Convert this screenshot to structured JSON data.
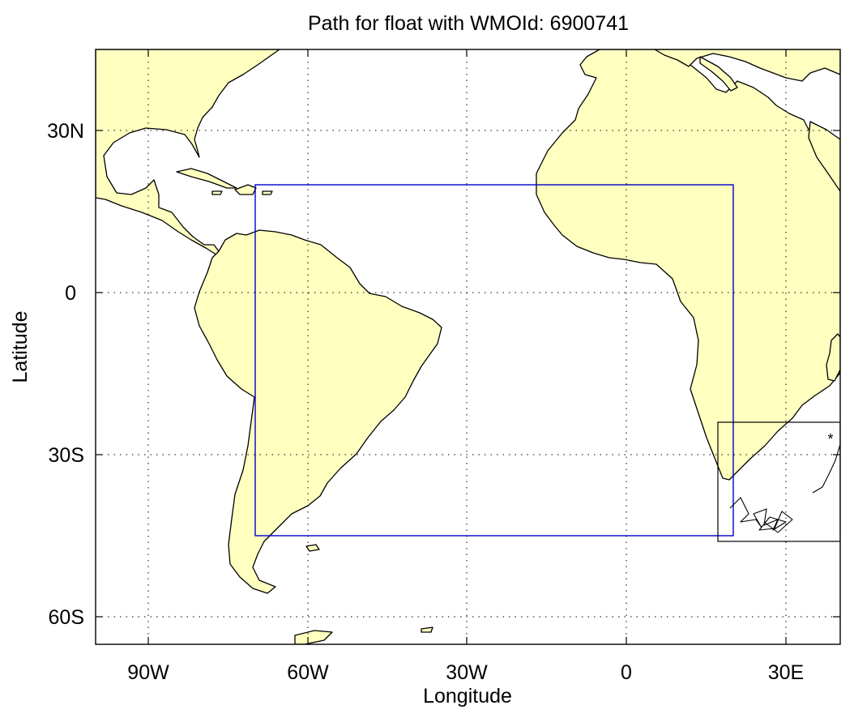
{
  "title": "Path for float with WMOId: 6900741",
  "x_axis": {
    "label": "Longitude",
    "range_deg": [
      -100,
      39
    ],
    "ticks": [
      {
        "value": -90,
        "label": "90W"
      },
      {
        "value": -60,
        "label": "60W"
      },
      {
        "value": -30,
        "label": "30W"
      },
      {
        "value": 0,
        "label": "0"
      },
      {
        "value": 30,
        "label": "30E"
      }
    ]
  },
  "y_axis": {
    "label": "Latitude",
    "range_deg": [
      -65,
      45
    ],
    "ticks": [
      {
        "value": 30,
        "label": "30N"
      },
      {
        "value": 0,
        "label": "0"
      },
      {
        "value": -30,
        "label": "30S"
      },
      {
        "value": -60,
        "label": "60S"
      }
    ]
  },
  "grid": true,
  "colors": {
    "land": "#ffffc0",
    "region_box": "#0000cc",
    "path": "#000000"
  },
  "region_box_deg": {
    "west": -70,
    "east": 20,
    "south": -45,
    "north": 20
  },
  "inset_box_deg": {
    "west": 17,
    "east": 40,
    "south": -46,
    "north": -24
  },
  "float_path_deg": [
    [
      17.5,
      -40
    ],
    [
      19.5,
      -38
    ],
    [
      21,
      -41
    ],
    [
      19.5,
      -42.5
    ],
    [
      22.5,
      -42
    ],
    [
      23.5,
      -43.5
    ],
    [
      22,
      -41
    ],
    [
      24.5,
      -40
    ],
    [
      24,
      -43
    ],
    [
      26.5,
      -42
    ],
    [
      25.5,
      -44
    ],
    [
      28,
      -42.5
    ],
    [
      25,
      -41.5
    ],
    [
      23,
      -44
    ],
    [
      26,
      -43.8
    ],
    [
      27.5,
      -40.5
    ],
    [
      29.5,
      -42
    ],
    [
      26.5,
      -44.5
    ],
    [
      24,
      -42.5
    ],
    [
      32,
      -37
    ],
    [
      34,
      -36
    ],
    [
      35.5,
      -33
    ],
    [
      36.5,
      -31
    ],
    [
      37.5,
      -27.5
    ],
    [
      38.5,
      -27.8
    ]
  ]
}
